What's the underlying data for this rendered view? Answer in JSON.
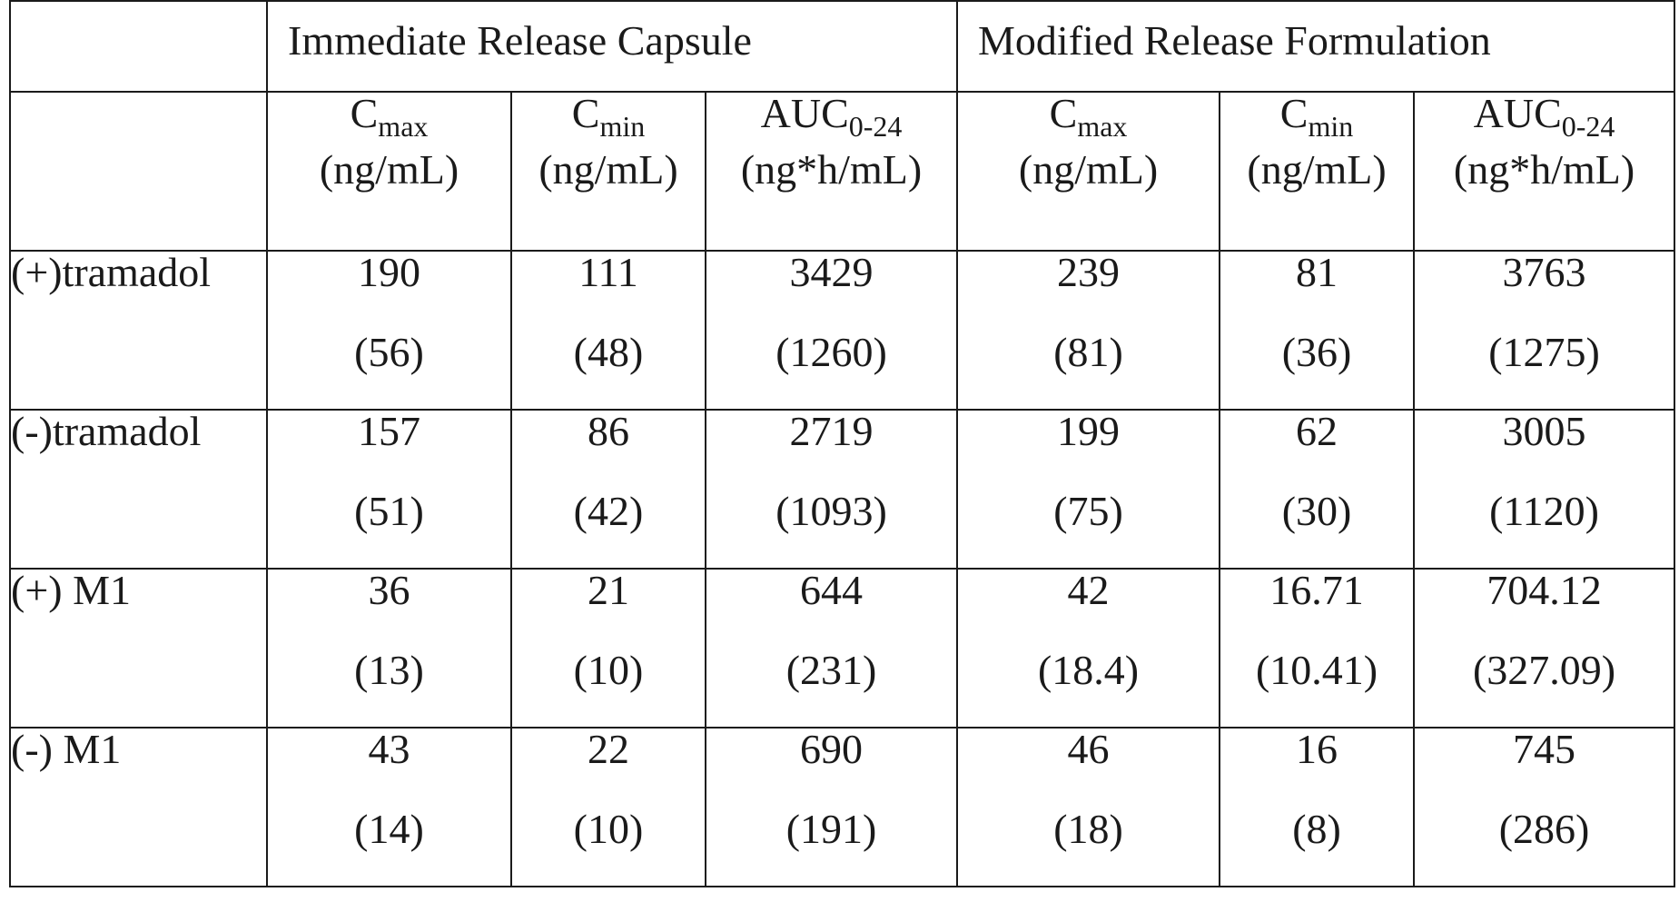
{
  "table": {
    "groups": [
      {
        "label": "Immediate Release Capsule"
      },
      {
        "label": "Modified Release Formulation"
      }
    ],
    "params": [
      {
        "base": "C",
        "sub": "max",
        "unit": "(ng/mL)"
      },
      {
        "base": "C",
        "sub": "min",
        "unit": "(ng/mL)"
      },
      {
        "base": "AUC",
        "sub": "0-24",
        "unit": "(ng*h/mL)"
      },
      {
        "base": "C",
        "sub": "max",
        "unit": "(ng/mL)"
      },
      {
        "base": "C",
        "sub": "min",
        "unit": "(ng/mL)"
      },
      {
        "base": "AUC",
        "sub": "0-24",
        "unit": "(ng*h/mL)"
      }
    ],
    "rows": [
      {
        "label": "(+)tramadol",
        "cells": [
          {
            "mean": "190",
            "sd": "(56)"
          },
          {
            "mean": "111",
            "sd": "(48)"
          },
          {
            "mean": "3429",
            "sd": "(1260)"
          },
          {
            "mean": "239",
            "sd": "(81)"
          },
          {
            "mean": "81",
            "sd": "(36)"
          },
          {
            "mean": "3763",
            "sd": "(1275)"
          }
        ]
      },
      {
        "label": "(-)tramadol",
        "cells": [
          {
            "mean": "157",
            "sd": "(51)"
          },
          {
            "mean": "86",
            "sd": "(42)"
          },
          {
            "mean": "2719",
            "sd": "(1093)"
          },
          {
            "mean": "199",
            "sd": "(75)"
          },
          {
            "mean": "62",
            "sd": "(30)"
          },
          {
            "mean": "3005",
            "sd": "(1120)"
          }
        ]
      },
      {
        "label": "(+) M1",
        "cells": [
          {
            "mean": "36",
            "sd": "(13)"
          },
          {
            "mean": "21",
            "sd": "(10)"
          },
          {
            "mean": "644",
            "sd": "(231)"
          },
          {
            "mean": "42",
            "sd": "(18.4)"
          },
          {
            "mean": "16.71",
            "sd": "(10.41)"
          },
          {
            "mean": "704.12",
            "sd": "(327.09)"
          }
        ]
      },
      {
        "label": "(-) M1",
        "cells": [
          {
            "mean": "43",
            "sd": "(14)"
          },
          {
            "mean": "22",
            "sd": "(10)"
          },
          {
            "mean": "690",
            "sd": "(191)"
          },
          {
            "mean": "46",
            "sd": "(18)"
          },
          {
            "mean": "16",
            "sd": "(8)"
          },
          {
            "mean": "745",
            "sd": "(286)"
          }
        ]
      }
    ]
  }
}
